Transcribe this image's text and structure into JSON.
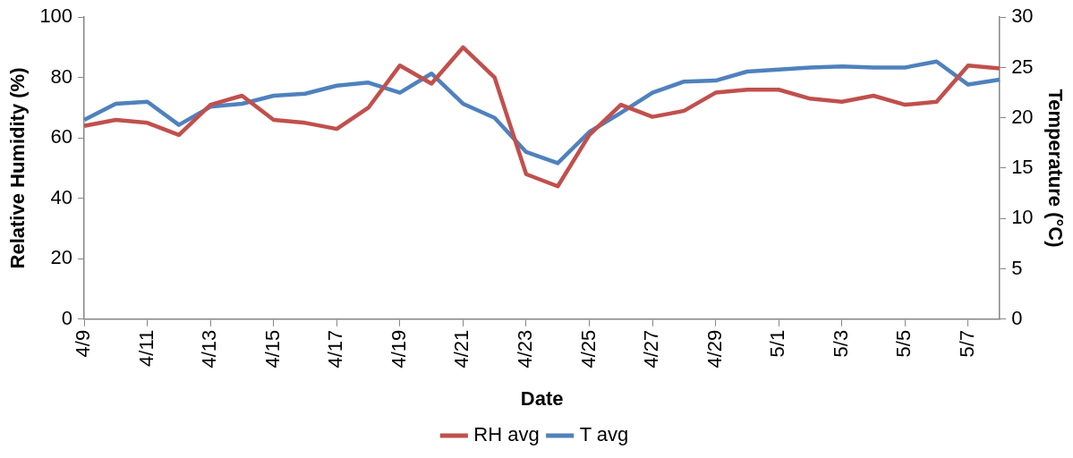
{
  "chart_data": {
    "type": "line",
    "xlabel": "Date",
    "ylabel": "Relative Humidity (%)",
    "y2label": "Temperature (°C)",
    "categories": [
      "4/9",
      null,
      "4/11",
      null,
      "4/13",
      null,
      "4/15",
      null,
      "4/17",
      null,
      "4/19",
      null,
      "4/21",
      null,
      "4/23",
      null,
      "4/25",
      null,
      "4/27",
      null,
      "4/29",
      null,
      "5/1",
      null,
      "5/3",
      null,
      "5/5",
      null,
      "5/7",
      null
    ],
    "series": [
      {
        "name": "RH avg",
        "color": "#c0504d",
        "values": [
          64,
          66,
          65,
          61,
          71,
          74,
          66,
          65,
          63,
          70,
          84,
          78,
          90,
          80,
          48,
          44,
          61,
          71,
          67,
          69,
          75,
          76,
          76,
          73,
          72,
          74,
          71,
          72,
          84,
          83
        ]
      },
      {
        "name": "T avg",
        "color": "#4f81bd",
        "axis": "y2",
        "values": [
          19.8,
          21.4,
          21.6,
          19.3,
          21.1,
          21.4,
          22.2,
          22.4,
          23.2,
          23.5,
          22.5,
          24.4,
          21.4,
          20.0,
          16.6,
          15.5,
          18.6,
          20.5,
          22.5,
          23.6,
          23.7,
          24.6,
          24.8,
          25.0,
          25.1,
          25.0,
          25.0,
          25.6,
          23.3,
          23.8
        ]
      }
    ],
    "ylim": [
      0,
      100
    ],
    "yticks": [
      0,
      20,
      40,
      60,
      80,
      100
    ],
    "y2lim": [
      0,
      30
    ],
    "y2ticks": [
      0,
      5,
      10,
      15,
      20,
      25,
      30
    ],
    "grid": false,
    "legend": "bottom",
    "marker": "none",
    "line_style": "solid"
  }
}
